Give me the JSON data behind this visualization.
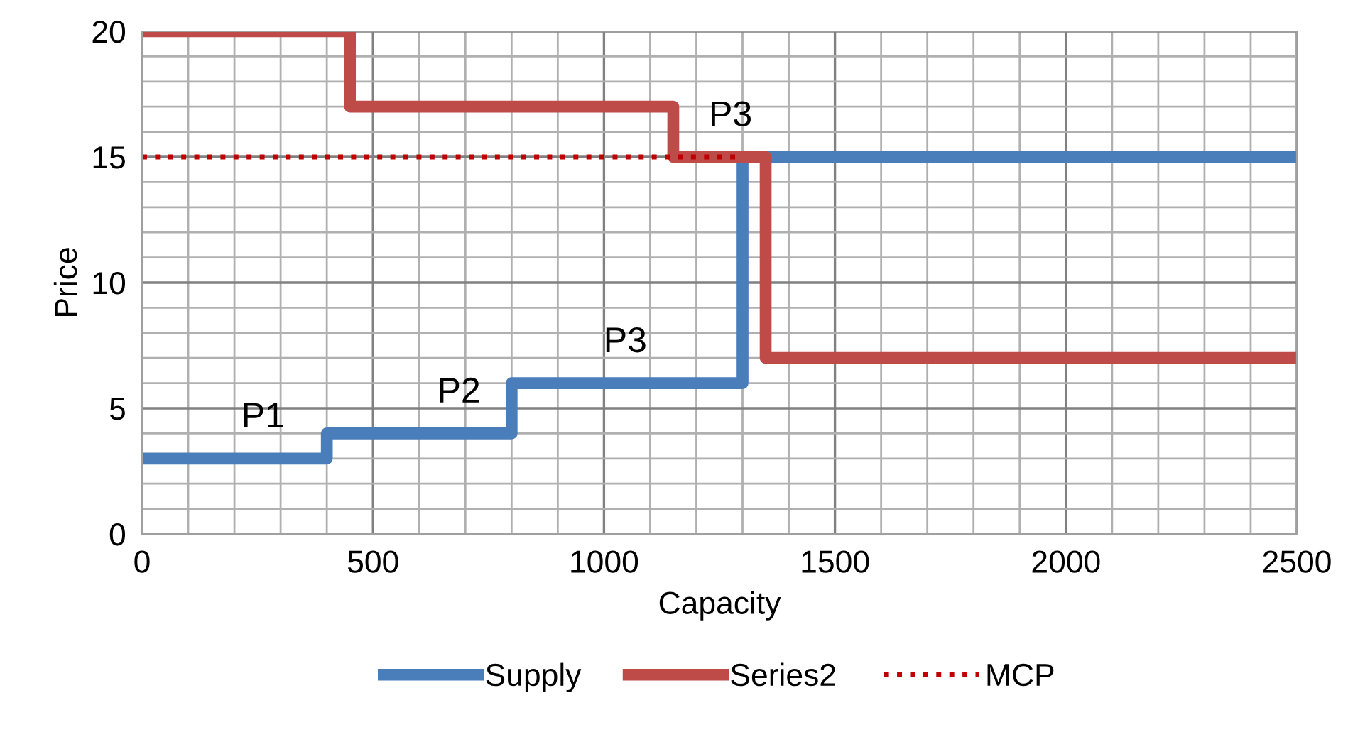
{
  "chart_data": {
    "type": "step",
    "xlabel": "Capacity",
    "ylabel": "Price",
    "xlim": [
      0,
      2500
    ],
    "xticks": [
      0,
      500,
      1000,
      1500,
      2000,
      2500
    ],
    "ylim": [
      0,
      20
    ],
    "yticks": [
      0,
      5,
      10,
      15,
      20
    ],
    "grid": true,
    "legend": "bottom",
    "series": [
      {
        "name": "Supply",
        "color": "#4a7ebb",
        "x": [
          0,
          400,
          800,
          1300,
          2500
        ],
        "values": [
          3,
          4,
          6,
          15,
          15
        ]
      },
      {
        "name": "Series2",
        "color": "#be4b48",
        "x": [
          0,
          450,
          1150,
          1350,
          2500
        ],
        "values": [
          20,
          17,
          15,
          7,
          7
        ]
      },
      {
        "name": "MCP",
        "color": "#c00000",
        "type": "line",
        "line_style": "dotted",
        "x": [
          0,
          1300
        ],
        "values": [
          15,
          15
        ]
      }
    ],
    "annotations": [
      {
        "text": "P1",
        "x": 262,
        "y": 3
      },
      {
        "text": "P2",
        "x": 686,
        "y": 4
      },
      {
        "text": "P3",
        "x": 1046,
        "y": 6
      },
      {
        "text": "P3",
        "x": 1274,
        "y": 15
      }
    ]
  }
}
